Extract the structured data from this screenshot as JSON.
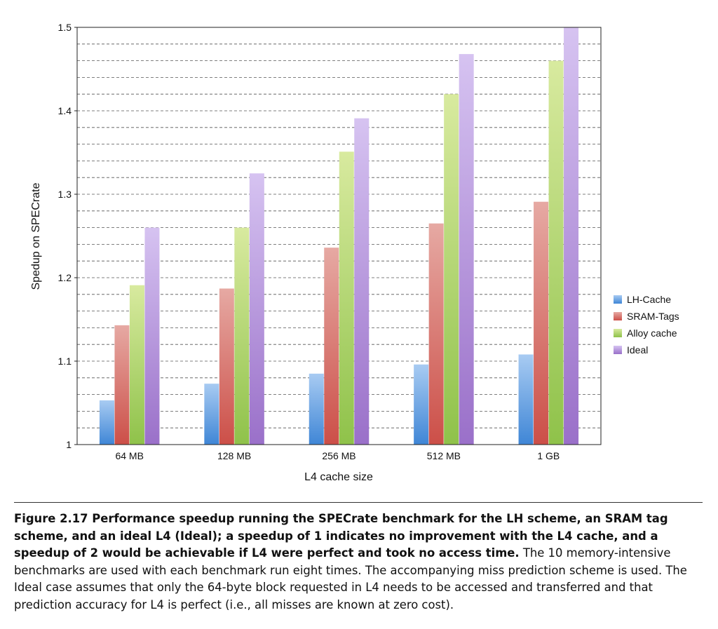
{
  "chart_data": {
    "type": "bar",
    "categories": [
      "64 MB",
      "128 MB",
      "256 MB",
      "512 MB",
      "1 GB"
    ],
    "series": [
      {
        "name": "LH-Cache",
        "values": [
          1.053,
          1.073,
          1.085,
          1.096,
          1.108
        ]
      },
      {
        "name": "SRAM-Tags",
        "values": [
          1.143,
          1.187,
          1.236,
          1.265,
          1.291
        ]
      },
      {
        "name": "Alloy cache",
        "values": [
          1.191,
          1.26,
          1.351,
          1.42,
          1.46
        ]
      },
      {
        "name": "Ideal",
        "values": [
          1.26,
          1.325,
          1.391,
          1.468,
          1.5
        ]
      }
    ],
    "colors": [
      "#3f86d6",
      "#cc4f48",
      "#8fc24a",
      "#9a70c9"
    ],
    "colors_light": [
      "#a8cbf2",
      "#e6a9a3",
      "#d8ea9f",
      "#d6c3f1"
    ],
    "title": "",
    "xlabel": "L4 cache size",
    "ylabel": "Spedup on SPECrate",
    "ylim": [
      1,
      1.5
    ],
    "yticks": [
      "1",
      "1.1",
      "1.2",
      "1.3",
      "1.4",
      "1.5"
    ],
    "grid": "dashed horizontal minor lines",
    "legend_position": "right"
  },
  "caption": {
    "label": "Figure 2.17",
    "bold_text": "Performance speedup running the SPECrate benchmark for the LH scheme, an SRAM tag scheme, and an ideal L4 (Ideal); a speedup of 1 indicates no improvement with the L4 cache, and a speedup of 2 would be achievable if L4 were perfect and took no access time.",
    "text": "The 10 memory-intensive benchmarks are used with each benchmark run eight times. The accompanying miss prediction scheme is used. The Ideal case assumes that only the 64-byte block requested in L4 needs to be accessed and transferred and that prediction accuracy for L4 is perfect (i.e., all misses are known at zero cost)."
  }
}
